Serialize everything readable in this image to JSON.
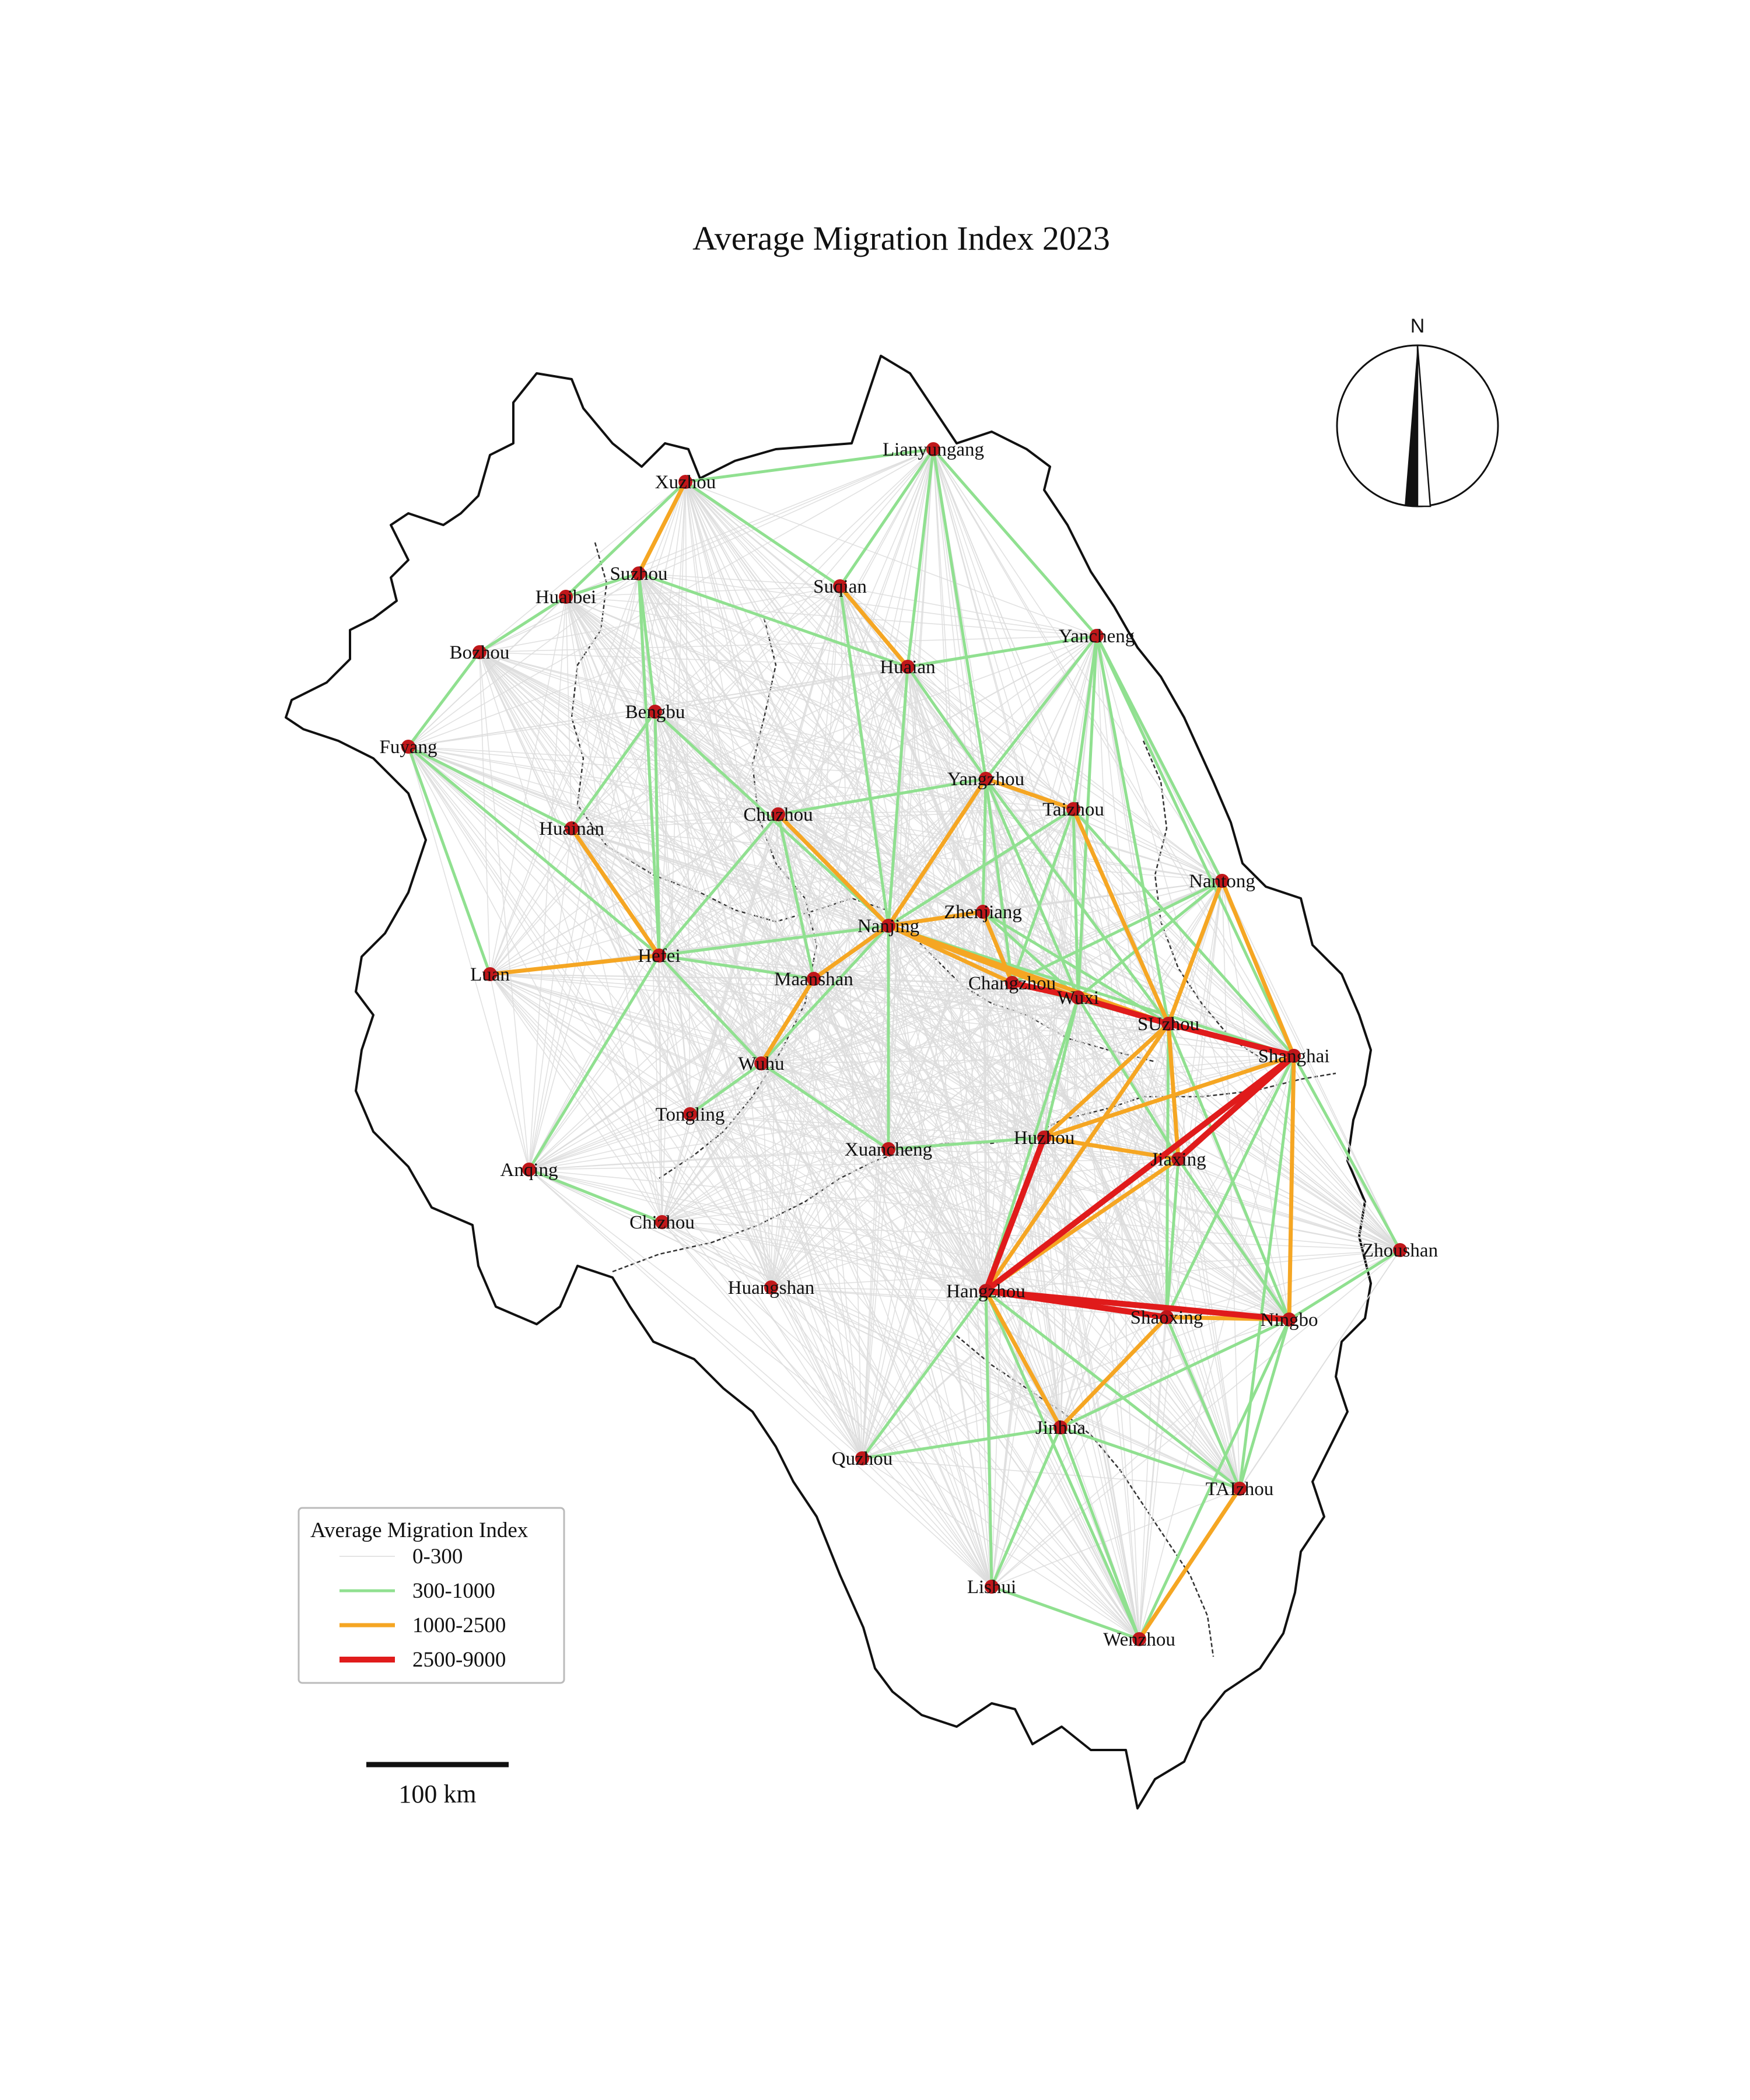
{
  "title": "Average Migration Index 2023",
  "legend": {
    "title": "Average Migration Index",
    "items": [
      {
        "label": "0-300",
        "color": "#dcdcdc"
      },
      {
        "label": "300-1000",
        "color": "#90e090"
      },
      {
        "label": "1000-2500",
        "color": "#f5a623"
      },
      {
        "label": "2500-9000",
        "color": "#e01b1b"
      }
    ]
  },
  "scale_bar": {
    "label": "100 km"
  },
  "north_arrow": {
    "label": "N"
  },
  "node_color": "#c0171a",
  "cities": [
    {
      "id": "lianyungang",
      "name": "Lianyungang"
    },
    {
      "id": "xuzhou",
      "name": "Xuzhou"
    },
    {
      "id": "suzhou_ah",
      "name": "Suzhou"
    },
    {
      "id": "huaibei",
      "name": "Huaibei"
    },
    {
      "id": "suqian",
      "name": "Suqian"
    },
    {
      "id": "yancheng",
      "name": "Yancheng"
    },
    {
      "id": "bozhou",
      "name": "Bozhou"
    },
    {
      "id": "huaian",
      "name": "Huaian"
    },
    {
      "id": "bengbu",
      "name": "Bengbu"
    },
    {
      "id": "fuyang",
      "name": "Fuyang"
    },
    {
      "id": "yangzhou",
      "name": "Yangzhou"
    },
    {
      "id": "taizhou_js",
      "name": "Taizhou"
    },
    {
      "id": "chuzhou",
      "name": "Chuzhou"
    },
    {
      "id": "huainan",
      "name": "Huainan"
    },
    {
      "id": "nantong",
      "name": "Nantong"
    },
    {
      "id": "zhenjiang",
      "name": "Zhenjiang"
    },
    {
      "id": "nanjing",
      "name": "Nanjing"
    },
    {
      "id": "hefei",
      "name": "Hefei"
    },
    {
      "id": "luan",
      "name": "Luan"
    },
    {
      "id": "maanshan",
      "name": "Maanshan"
    },
    {
      "id": "changzhou",
      "name": "Changzhou"
    },
    {
      "id": "wuxi",
      "name": "Wuxi"
    },
    {
      "id": "suzhou_js",
      "name": "SUzhou"
    },
    {
      "id": "shanghai",
      "name": "Shanghai"
    },
    {
      "id": "wuhu",
      "name": "Wuhu"
    },
    {
      "id": "tongling",
      "name": "Tongling"
    },
    {
      "id": "huzhou",
      "name": "Huzhou"
    },
    {
      "id": "xuancheng",
      "name": "Xuancheng"
    },
    {
      "id": "jiaxing",
      "name": "Jiaxing"
    },
    {
      "id": "anqing",
      "name": "Anqing"
    },
    {
      "id": "chizhou",
      "name": "Chizhou"
    },
    {
      "id": "zhoushan",
      "name": "Zhoushan"
    },
    {
      "id": "huangshan",
      "name": "Huangshan"
    },
    {
      "id": "hangzhou",
      "name": "Hangzhou"
    },
    {
      "id": "shaoxing",
      "name": "Shaoxing"
    },
    {
      "id": "ningbo",
      "name": "Ningbo"
    },
    {
      "id": "jinhua",
      "name": "Jinhua"
    },
    {
      "id": "quzhou",
      "name": "Quzhou"
    },
    {
      "id": "taizhou_zj",
      "name": "TAIzhou"
    },
    {
      "id": "lishui",
      "name": "Lishui"
    },
    {
      "id": "wenzhou",
      "name": "Wenzhou"
    }
  ],
  "flows_red": [
    [
      "hangzhou",
      "shanghai"
    ],
    [
      "suzhou_js",
      "shanghai"
    ],
    [
      "hangzhou",
      "huzhou"
    ],
    [
      "hangzhou",
      "ningbo"
    ],
    [
      "hangzhou",
      "shaoxing"
    ],
    [
      "wuxi",
      "suzhou_js"
    ],
    [
      "jiaxing",
      "shanghai"
    ],
    [
      "changzhou",
      "wuxi"
    ]
  ],
  "flows_orange": [
    [
      "xuzhou",
      "suzhou_ah"
    ],
    [
      "suqian",
      "huaian"
    ],
    [
      "yangzhou",
      "taizhou_js"
    ],
    [
      "chuzhou",
      "nanjing"
    ],
    [
      "huainan",
      "hefei"
    ],
    [
      "luan",
      "hefei"
    ],
    [
      "nanjing",
      "zhenjiang"
    ],
    [
      "nanjing",
      "maanshan"
    ],
    [
      "nanjing",
      "changzhou"
    ],
    [
      "nanjing",
      "wuxi"
    ],
    [
      "nanjing",
      "suzhou_js"
    ],
    [
      "zhenjiang",
      "changzhou"
    ],
    [
      "nantong",
      "suzhou_js"
    ],
    [
      "nantong",
      "shanghai"
    ],
    [
      "suzhou_js",
      "huzhou"
    ],
    [
      "suzhou_js",
      "jiaxing"
    ],
    [
      "suzhou_js",
      "hangzhou"
    ],
    [
      "huzhou",
      "jiaxing"
    ],
    [
      "jiaxing",
      "hangzhou"
    ],
    [
      "shaoxing",
      "ningbo"
    ],
    [
      "shaoxing",
      "jinhua"
    ],
    [
      "hangzhou",
      "jinhua"
    ],
    [
      "taizhou_zj",
      "wenzhou"
    ],
    [
      "shanghai",
      "ningbo"
    ],
    [
      "shanghai",
      "huzhou"
    ],
    [
      "maanshan",
      "wuhu"
    ],
    [
      "yangzhou",
      "nanjing"
    ],
    [
      "suzhou_js",
      "taizhou_js"
    ]
  ],
  "flows_green": [
    [
      "lianyungang",
      "xuzhou"
    ],
    [
      "lianyungang",
      "suqian"
    ],
    [
      "lianyungang",
      "huaian"
    ],
    [
      "lianyungang",
      "yancheng"
    ],
    [
      "lianyungang",
      "yangzhou"
    ],
    [
      "xuzhou",
      "suqian"
    ],
    [
      "xuzhou",
      "huaibei"
    ],
    [
      "suzhou_ah",
      "huaibei"
    ],
    [
      "suzhou_ah",
      "bengbu"
    ],
    [
      "suzhou_ah",
      "hefei"
    ],
    [
      "suzhou_ah",
      "huaian"
    ],
    [
      "bozhou",
      "fuyang"
    ],
    [
      "bozhou",
      "huaibei"
    ],
    [
      "fuyang",
      "hefei"
    ],
    [
      "fuyang",
      "huainan"
    ],
    [
      "fuyang",
      "luan"
    ],
    [
      "bengbu",
      "hefei"
    ],
    [
      "bengbu",
      "huainan"
    ],
    [
      "bengbu",
      "nanjing"
    ],
    [
      "suqian",
      "nanjing"
    ],
    [
      "huaian",
      "yancheng"
    ],
    [
      "huaian",
      "nanjing"
    ],
    [
      "huaian",
      "yangzhou"
    ],
    [
      "yancheng",
      "taizhou_js"
    ],
    [
      "yancheng",
      "nantong"
    ],
    [
      "yancheng",
      "suzhou_js"
    ],
    [
      "yancheng",
      "wuxi"
    ],
    [
      "yancheng",
      "shanghai"
    ],
    [
      "yancheng",
      "yangzhou"
    ],
    [
      "chuzhou",
      "hefei"
    ],
    [
      "chuzhou",
      "yangzhou"
    ],
    [
      "chuzhou",
      "maanshan"
    ],
    [
      "hefei",
      "nanjing"
    ],
    [
      "hefei",
      "wuhu"
    ],
    [
      "hefei",
      "anqing"
    ],
    [
      "hefei",
      "maanshan"
    ],
    [
      "yangzhou",
      "zhenjiang"
    ],
    [
      "yangzhou",
      "changzhou"
    ],
    [
      "yangzhou",
      "wuxi"
    ],
    [
      "yangzhou",
      "suzhou_js"
    ],
    [
      "taizhou_js",
      "wuxi"
    ],
    [
      "taizhou_js",
      "changzhou"
    ],
    [
      "taizhou_js",
      "nanjing"
    ],
    [
      "taizhou_js",
      "shanghai"
    ],
    [
      "zhenjiang",
      "wuxi"
    ],
    [
      "zhenjiang",
      "suzhou_js"
    ],
    [
      "nanjing",
      "wuhu"
    ],
    [
      "nanjing",
      "xuancheng"
    ],
    [
      "nanjing",
      "shanghai"
    ],
    [
      "wuhu",
      "xuancheng"
    ],
    [
      "wuhu",
      "tongling"
    ],
    [
      "anqing",
      "chizhou"
    ],
    [
      "xuancheng",
      "huzhou"
    ],
    [
      "huzhou",
      "wuxi"
    ],
    [
      "hangzhou",
      "wuxi"
    ],
    [
      "hangzhou",
      "quzhou"
    ],
    [
      "hangzhou",
      "lishui"
    ],
    [
      "hangzhou",
      "taizhou_zj"
    ],
    [
      "hangzhou",
      "wenzhou"
    ],
    [
      "jinhua",
      "quzhou"
    ],
    [
      "jinhua",
      "lishui"
    ],
    [
      "jinhua",
      "wenzhou"
    ],
    [
      "jinhua",
      "taizhou_zj"
    ],
    [
      "jinhua",
      "ningbo"
    ],
    [
      "ningbo",
      "taizhou_zj"
    ],
    [
      "ningbo",
      "zhoushan"
    ],
    [
      "ningbo",
      "jiaxing"
    ],
    [
      "shaoxing",
      "taizhou_zj"
    ],
    [
      "shaoxing",
      "jiaxing"
    ],
    [
      "shanghai",
      "zhoushan"
    ],
    [
      "shanghai",
      "taizhou_zj"
    ],
    [
      "shanghai",
      "shaoxing"
    ],
    [
      "shanghai",
      "wuxi"
    ],
    [
      "shanghai",
      "changzhou"
    ],
    [
      "lishui",
      "wenzhou"
    ],
    [
      "wenzhou",
      "ningbo"
    ],
    [
      "jiaxing",
      "wuxi"
    ],
    [
      "suzhou_js",
      "shaoxing"
    ],
    [
      "suzhou_js",
      "ningbo"
    ],
    [
      "suzhou_js",
      "changzhou"
    ],
    [
      "nantong",
      "wuxi"
    ],
    [
      "nantong",
      "changzhou"
    ]
  ]
}
